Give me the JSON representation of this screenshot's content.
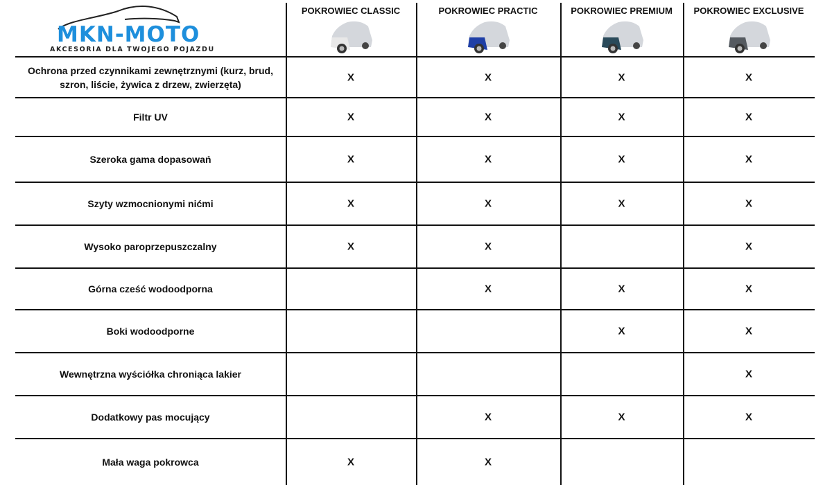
{
  "brand": {
    "name": "MKN-MOTO",
    "tagline": "AKCESORIA DLA TWOJEGO POJAZDU",
    "color": "#1e8fdc"
  },
  "columns": [
    {
      "label": "POKROWIEC CLASSIC",
      "car_color": "#e8e8e8"
    },
    {
      "label": "POKROWIEC PRACTIC",
      "car_color": "#1f3fa6"
    },
    {
      "label": "POKROWIEC PREMIUM",
      "car_color": "#2a4a5a"
    },
    {
      "label": "POKROWIEC EXCLUSIVE",
      "car_color": "#555a60"
    }
  ],
  "mark": "X",
  "rows": [
    {
      "feature": "Ochrona przed czynnikami zewnętrznymi (kurz, brud, szron, liście, żywica z drzew, zwierzęta)",
      "checks": [
        true,
        true,
        true,
        true
      ]
    },
    {
      "feature": "Filtr UV",
      "checks": [
        true,
        true,
        true,
        true
      ]
    },
    {
      "feature": "Szeroka gama dopasowań",
      "checks": [
        true,
        true,
        true,
        true
      ]
    },
    {
      "feature": "Szyty wzmocnionymi nićmi",
      "checks": [
        true,
        true,
        true,
        true
      ]
    },
    {
      "feature": "Wysoko paroprzepuszczalny",
      "checks": [
        true,
        true,
        false,
        true
      ]
    },
    {
      "feature": "Górna cześć wodoodporna",
      "checks": [
        false,
        true,
        true,
        true
      ]
    },
    {
      "feature": "Boki wodoodporne",
      "checks": [
        false,
        false,
        true,
        true
      ]
    },
    {
      "feature": "Wewnętrzna wyściółka chroniąca lakier",
      "checks": [
        false,
        false,
        false,
        true
      ]
    },
    {
      "feature": "Dodatkowy pas mocujący",
      "checks": [
        false,
        true,
        true,
        true
      ]
    },
    {
      "feature": "Mała waga pokrowca",
      "checks": [
        true,
        true,
        false,
        false
      ]
    }
  ]
}
